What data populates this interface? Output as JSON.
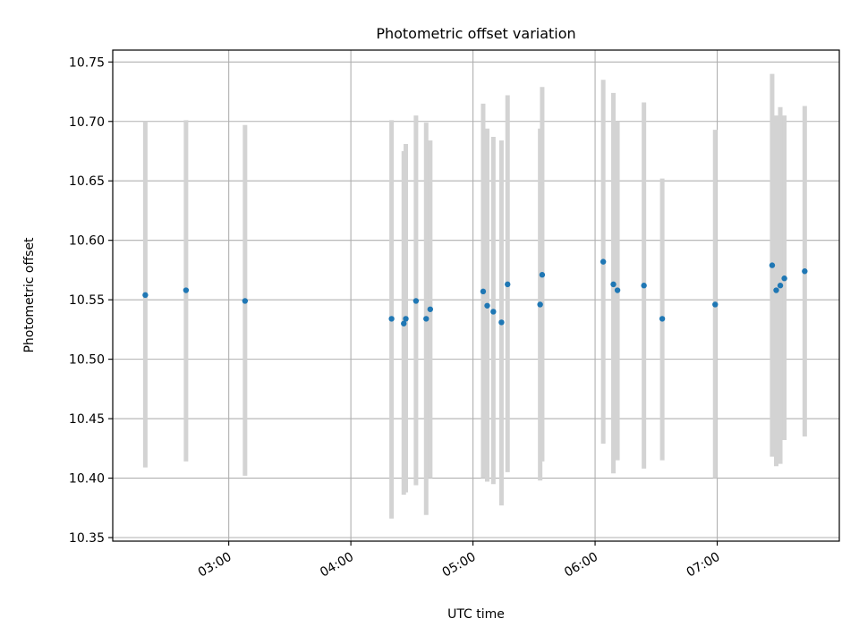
{
  "chart_data": {
    "type": "scatter",
    "title": "Photometric offset variation",
    "xlabel": "UTC time",
    "ylabel": "Photometric offset",
    "x_ticks": [
      "03:00",
      "04:00",
      "05:00",
      "06:00",
      "07:00"
    ],
    "y_ticks": [
      "10.35",
      "10.40",
      "10.45",
      "10.50",
      "10.55",
      "10.60",
      "10.65",
      "10.70",
      "10.75"
    ],
    "xlim": [
      "02:03",
      "08:00"
    ],
    "ylim": [
      10.347,
      10.76
    ],
    "grid": true,
    "colors": {
      "point": "#1f77b4",
      "errorbar": "#d3d3d3",
      "grid": "#b0b0b0"
    },
    "points": [
      {
        "x": "02:19",
        "y": 10.554,
        "ylow": 10.409,
        "yhigh": 10.7
      },
      {
        "x": "02:39",
        "y": 10.558,
        "ylow": 10.414,
        "yhigh": 10.701
      },
      {
        "x": "03:08",
        "y": 10.549,
        "ylow": 10.402,
        "yhigh": 10.697
      },
      {
        "x": "04:20",
        "y": 10.534,
        "ylow": 10.366,
        "yhigh": 10.701
      },
      {
        "x": "04:26",
        "y": 10.53,
        "ylow": 10.386,
        "yhigh": 10.675
      },
      {
        "x": "04:27",
        "y": 10.534,
        "ylow": 10.388,
        "yhigh": 10.681
      },
      {
        "x": "04:32",
        "y": 10.549,
        "ylow": 10.394,
        "yhigh": 10.705
      },
      {
        "x": "04:37",
        "y": 10.534,
        "ylow": 10.369,
        "yhigh": 10.699
      },
      {
        "x": "04:39",
        "y": 10.542,
        "ylow": 10.4,
        "yhigh": 10.684
      },
      {
        "x": "05:05",
        "y": 10.557,
        "ylow": 10.4,
        "yhigh": 10.715
      },
      {
        "x": "05:07",
        "y": 10.545,
        "ylow": 10.397,
        "yhigh": 10.694
      },
      {
        "x": "05:10",
        "y": 10.54,
        "ylow": 10.395,
        "yhigh": 10.687
      },
      {
        "x": "05:14",
        "y": 10.531,
        "ylow": 10.377,
        "yhigh": 10.684
      },
      {
        "x": "05:17",
        "y": 10.563,
        "ylow": 10.405,
        "yhigh": 10.722
      },
      {
        "x": "05:33",
        "y": 10.546,
        "ylow": 10.398,
        "yhigh": 10.694
      },
      {
        "x": "05:34",
        "y": 10.571,
        "ylow": 10.414,
        "yhigh": 10.729
      },
      {
        "x": "06:04",
        "y": 10.582,
        "ylow": 10.429,
        "yhigh": 10.735
      },
      {
        "x": "06:09",
        "y": 10.563,
        "ylow": 10.404,
        "yhigh": 10.724
      },
      {
        "x": "06:11",
        "y": 10.558,
        "ylow": 10.415,
        "yhigh": 10.7
      },
      {
        "x": "06:24",
        "y": 10.562,
        "ylow": 10.408,
        "yhigh": 10.716
      },
      {
        "x": "06:33",
        "y": 10.534,
        "ylow": 10.415,
        "yhigh": 10.652
      },
      {
        "x": "06:59",
        "y": 10.546,
        "ylow": 10.4,
        "yhigh": 10.693
      },
      {
        "x": "07:27",
        "y": 10.579,
        "ylow": 10.418,
        "yhigh": 10.74
      },
      {
        "x": "07:29",
        "y": 10.558,
        "ylow": 10.41,
        "yhigh": 10.705
      },
      {
        "x": "07:31",
        "y": 10.562,
        "ylow": 10.412,
        "yhigh": 10.712
      },
      {
        "x": "07:33",
        "y": 10.568,
        "ylow": 10.432,
        "yhigh": 10.705
      },
      {
        "x": "07:43",
        "y": 10.574,
        "ylow": 10.435,
        "yhigh": 10.713
      }
    ]
  }
}
